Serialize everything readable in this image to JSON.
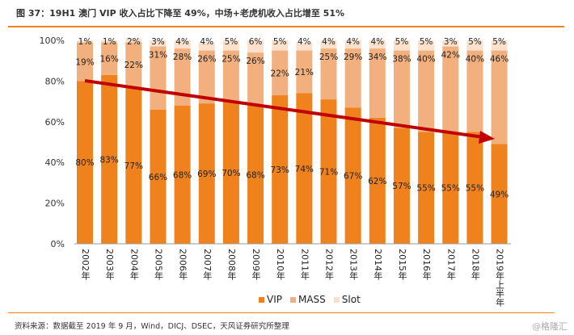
{
  "title": "图 37：19H1 澳门 VIP 收入占比下降至 49%，中场+老虎机收入占比增至 51%",
  "source": "资料来源：数据截至 2019 年 9 月，Wind，DICJ、DSEC，天风证券研究所整理",
  "watermark": "@格隆汇",
  "colors": {
    "VIP": "#f0821e",
    "MASS": "#f2b07e",
    "Slot": "#fbe0cc",
    "arrow": "#c00000",
    "accent": "#f0821e"
  },
  "chart_data": {
    "type": "bar",
    "stacked": true,
    "percent": true,
    "categories": [
      "2002年",
      "2003年",
      "2004年",
      "2005年",
      "2006年",
      "2007年",
      "2008年",
      "2009年",
      "2010年",
      "2011年",
      "2012年",
      "2013年",
      "2014年",
      "2015年",
      "2016年",
      "2017年",
      "2018年",
      "2019年上半年"
    ],
    "series": [
      {
        "name": "VIP",
        "values": [
          80,
          83,
          77,
          66,
          68,
          69,
          70,
          68,
          73,
          74,
          71,
          67,
          62,
          57,
          55,
          55,
          55,
          49
        ]
      },
      {
        "name": "MASS",
        "values": [
          19,
          16,
          22,
          31,
          28,
          26,
          25,
          26,
          22,
          21,
          25,
          29,
          34,
          38,
          40,
          42,
          40,
          46
        ]
      },
      {
        "name": "Slot",
        "values": [
          1,
          1,
          2,
          3,
          4,
          4,
          5,
          6,
          5,
          4,
          4,
          4,
          4,
          5,
          5,
          3,
          5,
          5
        ]
      }
    ],
    "yticks": [
      "0%",
      "20%",
      "40%",
      "60%",
      "80%",
      "100%"
    ],
    "ylim": [
      0,
      100
    ],
    "grid": false,
    "legend": "bottom",
    "annotation": "downward trend arrow from 2002 to 2018"
  }
}
